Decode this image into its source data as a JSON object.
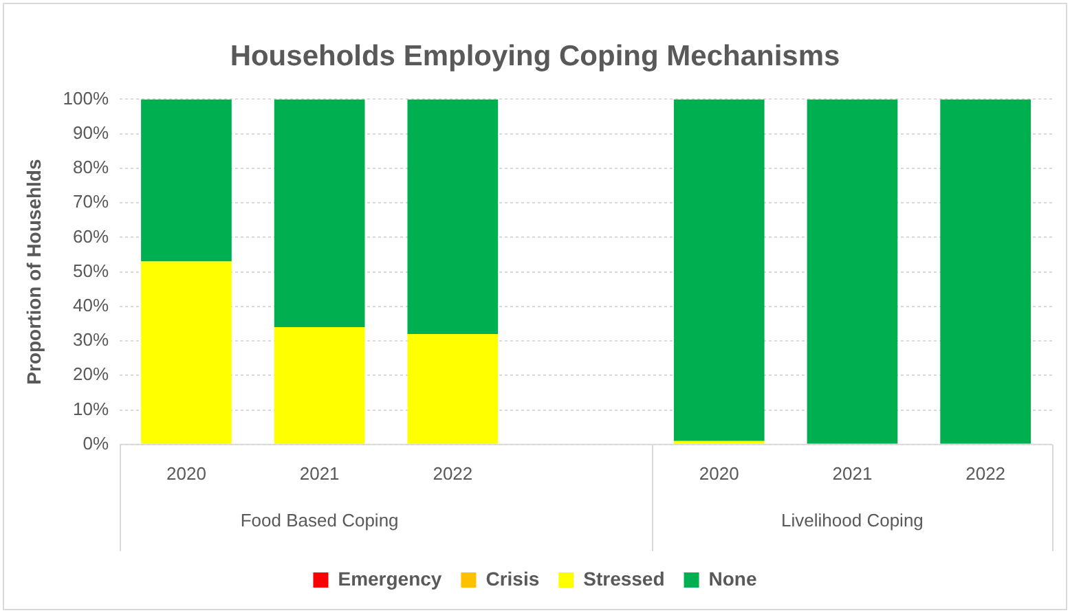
{
  "chart_data": {
    "type": "bar",
    "stacked": true,
    "title": "Households Employing Coping Mechanisms",
    "ylabel": "Proportion of Househlds",
    "categories": [
      "2020",
      "2021",
      "2022",
      null,
      "2020",
      "2021",
      "2022"
    ],
    "series": [
      {
        "name": "Emergency",
        "color": "#ff0000",
        "values": [
          0,
          0,
          0,
          null,
          0,
          0,
          0
        ]
      },
      {
        "name": "Crisis",
        "color": "#ffc000",
        "values": [
          0,
          0,
          0,
          null,
          0,
          0,
          0
        ]
      },
      {
        "name": "Stressed",
        "color": "#ffff00",
        "values": [
          53,
          34,
          32,
          null,
          1,
          0,
          0
        ]
      },
      {
        "name": "None",
        "color": "#00b050",
        "values": [
          47,
          66,
          68,
          null,
          99,
          100,
          100
        ]
      }
    ],
    "ylim": [
      0,
      100
    ],
    "yticks": [
      {
        "value": 0,
        "label": "0%"
      },
      {
        "value": 10,
        "label": "10%"
      },
      {
        "value": 20,
        "label": "20%"
      },
      {
        "value": 30,
        "label": "30%"
      },
      {
        "value": 40,
        "label": "40%"
      },
      {
        "value": 50,
        "label": "50%"
      },
      {
        "value": 60,
        "label": "60%"
      },
      {
        "value": 70,
        "label": "70%"
      },
      {
        "value": 80,
        "label": "80%"
      },
      {
        "value": 90,
        "label": "90%"
      },
      {
        "value": 100,
        "label": "100%"
      }
    ],
    "annotations": [
      "Food Based Coping",
      "Livelihood Coping"
    ],
    "grid": "y",
    "legend": "bottom"
  }
}
